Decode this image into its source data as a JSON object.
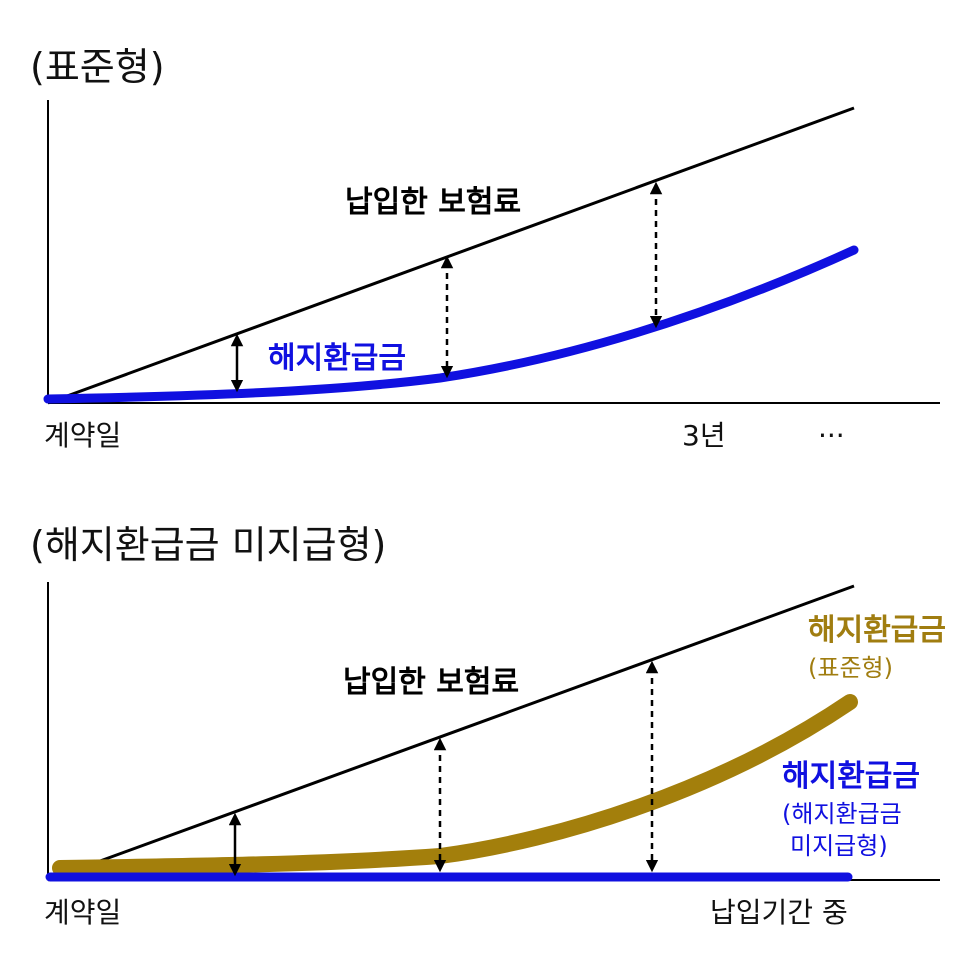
{
  "colors": {
    "premium_line": "#000000",
    "standard_refund": "#1010e0",
    "standard_refund_lower": "#a37f0c",
    "no_refund": "#1010e0"
  },
  "top": {
    "title": "(표준형)",
    "premium_label": "납입한 보험료",
    "refund_label": "해지환급금",
    "x_start": "계약일",
    "x_mark": "3년",
    "x_more": "···"
  },
  "bottom": {
    "title": "(해지환급금  미지급형)",
    "premium_label": "납입한 보험료",
    "standard_label_main": "해지환급금",
    "standard_label_sub": "(표준형)",
    "nopay_label_main": "해지환급금",
    "nopay_label_sub1": "(해지환급금",
    "nopay_label_sub2": "미지급형)",
    "x_start": "계약일",
    "x_mark": "납입기간 중"
  }
}
